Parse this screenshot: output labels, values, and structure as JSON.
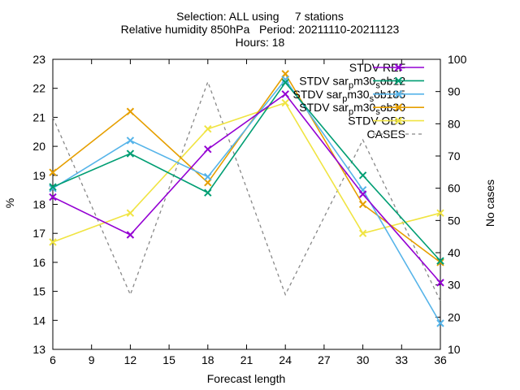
{
  "chart_data": {
    "type": "line",
    "title_lines": [
      "Selection: ALL using     7 stations",
      "Relative humidity 850hPa   Period: 20211110-20211123",
      "Hours: 18"
    ],
    "xlabel": "Forecast length",
    "ylabel": "%",
    "y2label": "No cases",
    "x": [
      6,
      12,
      18,
      24,
      30,
      36
    ],
    "xticks": [
      6,
      9,
      12,
      15,
      18,
      21,
      24,
      27,
      30,
      33,
      36
    ],
    "xlim": [
      6,
      36
    ],
    "ylim": [
      13,
      23
    ],
    "yticks": [
      13,
      14,
      15,
      16,
      17,
      18,
      19,
      20,
      21,
      22,
      23
    ],
    "y2lim": [
      10,
      100
    ],
    "y2ticks": [
      10,
      20,
      30,
      40,
      50,
      60,
      70,
      80,
      90,
      100
    ],
    "legend_position": "top-right",
    "series": [
      {
        "name": "STDV REF",
        "color": "#9400d3",
        "values": [
          18.25,
          16.95,
          19.9,
          21.8,
          18.35,
          15.3
        ]
      },
      {
        "name": "STDV sar_pm30_sob12",
        "name_parts": [
          "STDV sar",
          "p",
          "m30",
          "s",
          "ob12"
        ],
        "color": "#009e73",
        "values": [
          18.6,
          19.75,
          18.4,
          22.2,
          19.0,
          16.05
        ]
      },
      {
        "name": "STDV sar_pm30_sob185",
        "name_parts": [
          "STDV sar",
          "p",
          "m30",
          "s",
          "ob185"
        ],
        "color": "#56b4e9",
        "values": [
          18.55,
          20.2,
          18.95,
          22.3,
          18.5,
          13.9
        ]
      },
      {
        "name": "STDV sar_pm30_sob30",
        "name_parts": [
          "STDV sar",
          "p",
          "m30",
          "s",
          "ob30"
        ],
        "color": "#e69f00",
        "values": [
          19.1,
          21.2,
          18.75,
          22.5,
          18.0,
          16.0
        ]
      },
      {
        "name": "STDV OBS",
        "color": "#f0e442",
        "values": [
          16.7,
          17.7,
          20.6,
          21.5,
          17.0,
          17.7
        ]
      },
      {
        "name": "CASES",
        "color": "#888888",
        "dashed": true,
        "axis": "y2",
        "values": [
          82,
          27,
          93,
          27,
          75,
          25
        ]
      }
    ]
  }
}
